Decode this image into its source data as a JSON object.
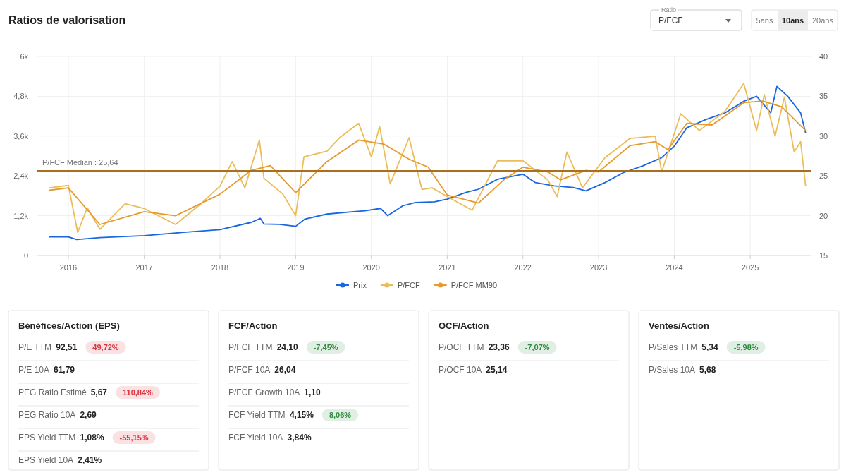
{
  "chart_data": [
    {
      "type": "line",
      "title": "Ratios de valorisation",
      "annotations": [
        "Ratio",
        "P/FCF",
        "5ans",
        "10ans",
        "20ans"
      ],
      "legend": "bottom",
      "grid": true,
      "marker": "none",
      "xlim": [
        "2015-08-01",
        "2025-10-20"
      ],
      "xticks": [
        {
          "value": "2016",
          "label": "2016"
        },
        {
          "value": "2017",
          "label": "2017"
        },
        {
          "value": "2018",
          "label": "2018"
        },
        {
          "value": "2019",
          "label": "2019"
        },
        {
          "value": "2020",
          "label": "2020"
        },
        {
          "value": "2021",
          "label": "2021"
        },
        {
          "value": "2022",
          "label": "2022"
        },
        {
          "value": "2023",
          "label": "2023"
        },
        {
          "value": "2024",
          "label": "2024"
        },
        {
          "value": "2025",
          "label": "2025"
        }
      ],
      "ylim": [
        0,
        6000
      ],
      "yticks": [
        0,
        {
          "value": 1200,
          "label": "1,2k"
        },
        {
          "value": 2400,
          "label": "2,4k"
        },
        {
          "value": 3600,
          "label": "3,6k"
        },
        {
          "value": 4800,
          "label": "4,8k"
        },
        {
          "value": 6000,
          "label": "6k"
        }
      ],
      "y2lim": [
        15,
        40
      ],
      "y2ticks": [
        15,
        20,
        25,
        30,
        35,
        40
      ],
      "ref_lines": [
        {
          "axis": "y2",
          "value": 25.64,
          "label": "P/FCF Median : 25,64",
          "color": "#a8701e"
        }
      ],
      "series": [
        {
          "name": "Prix",
          "color": "#1a66e0",
          "x": [
            "2015-10-01",
            "2016-01-01",
            "2016-02-10",
            "2016-06-01",
            "2017-01-01",
            "2017-06-01",
            "2018-01-01",
            "2018-06-01",
            "2018-07-15",
            "2018-08-01",
            "2018-10-15",
            "2019-01-01",
            "2019-02-15",
            "2019-06-01",
            "2019-12-01",
            "2020-02-15",
            "2020-03-20",
            "2020-06-01",
            "2020-08-01",
            "2020-11-01",
            "2021-01-01",
            "2021-04-01",
            "2021-06-01",
            "2021-09-01",
            "2022-01-01",
            "2022-03-01",
            "2022-06-01",
            "2022-09-01",
            "2022-11-01",
            "2023-02-01",
            "2023-05-01",
            "2023-08-01",
            "2023-11-01",
            "2024-01-01",
            "2024-03-01",
            "2024-06-01",
            "2024-09-01",
            "2024-12-01",
            "2025-02-01",
            "2025-04-10",
            "2025-05-10",
            "2025-07-01",
            "2025-09-01",
            "2025-09-25"
          ],
          "values": [
            560,
            560,
            480,
            540,
            600,
            680,
            780,
            1000,
            1120,
            950,
            940,
            880,
            1100,
            1250,
            1350,
            1420,
            1200,
            1500,
            1600,
            1620,
            1700,
            1900,
            2000,
            2300,
            2450,
            2200,
            2100,
            2050,
            1950,
            2200,
            2500,
            2700,
            2950,
            3300,
            3850,
            4100,
            4300,
            4650,
            4800,
            4300,
            5100,
            4800,
            4300,
            3700
          ],
          "axis": "y"
        },
        {
          "name": "P/FCF",
          "color": "#ebbd5a",
          "x": [
            "2015-10-01",
            "2016-01-01",
            "2016-02-15",
            "2016-04-01",
            "2016-06-01",
            "2016-10-01",
            "2017-01-01",
            "2017-06-01",
            "2017-10-01",
            "2018-01-01",
            "2018-03-01",
            "2018-05-01",
            "2018-07-10",
            "2018-08-01",
            "2018-11-01",
            "2019-01-01",
            "2019-02-10",
            "2019-06-01",
            "2019-08-01",
            "2019-11-01",
            "2020-01-01",
            "2020-02-10",
            "2020-04-01",
            "2020-07-01",
            "2020-09-01",
            "2020-10-20",
            "2021-01-01",
            "2021-05-01",
            "2021-09-01",
            "2022-01-01",
            "2022-05-01",
            "2022-06-15",
            "2022-08-01",
            "2022-10-15",
            "2023-02-01",
            "2023-06-01",
            "2023-10-01",
            "2023-11-01",
            "2024-02-01",
            "2024-05-01",
            "2024-09-01",
            "2024-12-01",
            "2025-02-01",
            "2025-03-10",
            "2025-05-01",
            "2025-06-15",
            "2025-08-01",
            "2025-09-01",
            "2025-09-25"
          ],
          "values": [
            23.5,
            23.8,
            17.9,
            21,
            18.3,
            21.5,
            20.9,
            18.9,
            21.5,
            23.7,
            26.8,
            23.5,
            29.5,
            24.7,
            22.7,
            20,
            27.4,
            28.1,
            29.8,
            31.6,
            27.4,
            31.2,
            24,
            29.8,
            23.3,
            23.5,
            22.4,
            20.7,
            26.9,
            26.9,
            24.5,
            22.4,
            28,
            23.5,
            27.3,
            29.7,
            30,
            25.5,
            32.8,
            30.7,
            33.1,
            36.6,
            30.7,
            35.2,
            30,
            34.9,
            28,
            29.3,
            23.8
          ],
          "axis": "y2"
        },
        {
          "name": "P/FCF MM90",
          "color": "#e69a2e",
          "x": [
            "2015-10-01",
            "2016-01-01",
            "2016-06-01",
            "2017-01-01",
            "2017-06-01",
            "2018-01-01",
            "2018-06-01",
            "2018-09-01",
            "2019-01-01",
            "2019-06-01",
            "2019-11-01",
            "2020-03-01",
            "2020-07-01",
            "2020-10-01",
            "2021-01-01",
            "2021-06-01",
            "2021-10-01",
            "2022-01-01",
            "2022-05-01",
            "2022-07-01",
            "2022-11-01",
            "2023-01-01",
            "2023-06-01",
            "2023-10-01",
            "2023-12-01",
            "2024-03-01",
            "2024-07-01",
            "2024-12-01",
            "2025-03-01",
            "2025-06-01",
            "2025-09-25"
          ],
          "values": [
            23.2,
            23.5,
            18.9,
            20.5,
            20,
            22.7,
            25.7,
            26.3,
            22.9,
            26.8,
            29.5,
            29,
            27.1,
            26.1,
            22.6,
            21.6,
            24.5,
            26.1,
            25.5,
            24.5,
            25.7,
            25.5,
            28.8,
            29.3,
            28.3,
            31.6,
            31.4,
            34.2,
            34.4,
            33.7,
            30.7
          ],
          "axis": "y2"
        }
      ]
    },
    {
      "type": "other",
      "title": "Bénéfices/Action (EPS)",
      "categories": [
        "P/E TTM",
        "P/E 10A",
        "PEG Ratio Estimé",
        "PEG Ratio 10A",
        "EPS Yield TTM",
        "EPS Yield 10A"
      ],
      "series": [
        {
          "values": [
            92.51,
            61.79,
            5.67,
            2.69,
            1.08,
            2.41
          ],
          "value_labels": [
            "92,51",
            "61,79",
            "5,67",
            "2,69",
            "1,08%",
            "2,41%"
          ]
        },
        {
          "values": [
            49.72,
            null,
            110.84,
            null,
            -55.15,
            null
          ],
          "value_labels": [
            "49,72%",
            null,
            "110,84%",
            null,
            "-55,15%",
            null
          ],
          "colors": [
            "#d9343f",
            null,
            "#d9343f",
            null,
            "#d9343f",
            null
          ]
        }
      ]
    },
    {
      "type": "other",
      "title": "FCF/Action",
      "categories": [
        "P/FCF TTM",
        "P/FCF 10A",
        "P/FCF Growth 10A",
        "FCF Yield TTM",
        "FCF Yield 10A"
      ],
      "series": [
        {
          "values": [
            24.1,
            26.04,
            1.1,
            4.15,
            3.84
          ],
          "value_labels": [
            "24,10",
            "26,04",
            "1,10",
            "4,15%",
            "3,84%"
          ]
        },
        {
          "values": [
            -7.45,
            null,
            null,
            8.06,
            null
          ],
          "value_labels": [
            "-7,45%",
            null,
            null,
            "8,06%",
            null
          ],
          "colors": [
            "#2e8a3e",
            null,
            null,
            "#2e8a3e",
            null
          ]
        }
      ]
    },
    {
      "type": "other",
      "title": "OCF/Action",
      "categories": [
        "P/OCF TTM",
        "P/OCF 10A"
      ],
      "series": [
        {
          "values": [
            23.36,
            25.14
          ],
          "value_labels": [
            "23,36",
            "25,14"
          ]
        },
        {
          "values": [
            -7.07,
            null
          ],
          "value_labels": [
            "-7,07%",
            null
          ],
          "colors": [
            "#2e8a3e",
            null
          ]
        }
      ]
    },
    {
      "type": "other",
      "title": "Ventes/Action",
      "categories": [
        "P/Sales TTM",
        "P/Sales 10A"
      ],
      "series": [
        {
          "values": [
            5.34,
            5.68
          ],
          "value_labels": [
            "5,34",
            "5,68"
          ]
        },
        {
          "values": [
            -5.98,
            null
          ],
          "value_labels": [
            "-5,98%",
            null
          ],
          "colors": [
            "#2e8a3e",
            null
          ]
        }
      ]
    }
  ]
}
